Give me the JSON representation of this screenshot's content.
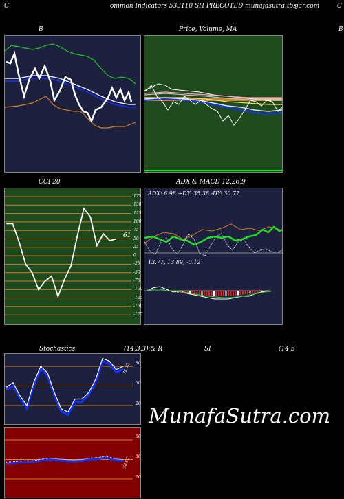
{
  "header": {
    "left_char": "C",
    "title": "ommon  Indicators 533110  SH PRECOTED munafasutra.tbsjar.com",
    "right_char": "C"
  },
  "panels": {
    "b": {
      "title": "B"
    },
    "price": {
      "title": "Price,  Volume, MA",
      "right_edge": "B"
    },
    "cci": {
      "title": "CCI 20",
      "value_label": "61",
      "ticks": [
        "175",
        "150",
        "125",
        "100",
        "75",
        "50",
        "25",
        "0",
        "-25",
        "-50",
        "-75",
        "-100",
        "-125",
        "-150",
        "-175"
      ]
    },
    "adx": {
      "title": "ADX  & MACD 12,26,9",
      "adx_text": "ADX: 6.98  +DY: 35.38  -DY: 30.77",
      "macd_text": "13.77,  13.89,  -0.12"
    },
    "stoch": {
      "title_left": "Stochastics",
      "title_mid": "(14,3,3) & R",
      "ticks": [
        "80",
        "50",
        "20"
      ],
      "value_label": "72.35"
    },
    "rsi": {
      "title_mid": "SI",
      "title_right": "(14,5",
      "ticks": [
        "80",
        "50",
        "20"
      ],
      "value_label": "50.65"
    }
  },
  "watermark": "MunafaSutra.com",
  "colors": {
    "navy": "#1e2040",
    "green": "#1e4a1e",
    "red": "#820000",
    "orange": "#d08020",
    "blue": "#1030ff",
    "lime": "#22dd22"
  },
  "chart_data": [
    {
      "type": "line",
      "panel": "B",
      "series": [
        {
          "values": [
            120,
            118,
            122,
            110,
            105,
            100,
            115,
            118,
            108,
            104,
            98,
            92,
            95,
            88,
            90,
            86
          ]
        }
      ]
    },
    {
      "type": "line",
      "panel": "CCI 20",
      "ylim": [
        -175,
        175
      ],
      "series": [
        {
          "values": [
            95,
            95,
            40,
            -25,
            -50,
            -100,
            -75,
            -60,
            -120,
            -70,
            -30,
            60,
            140,
            115,
            30,
            65,
            45,
            50
          ]
        }
      ]
    },
    {
      "type": "line",
      "panel": "Stochastics",
      "ylim": [
        0,
        100
      ],
      "series": [
        {
          "values": [
            48,
            55,
            35,
            20,
            55,
            80,
            70,
            40,
            15,
            10,
            30,
            30,
            40,
            60,
            92,
            88,
            75,
            80
          ]
        }
      ]
    },
    {
      "type": "line",
      "panel": "RSI",
      "ylim": [
        0,
        100
      ],
      "series": [
        {
          "values": [
            46,
            47,
            48,
            48,
            50,
            52,
            51,
            50,
            49,
            50,
            52,
            53,
            55,
            51,
            50
          ]
        }
      ]
    }
  ]
}
